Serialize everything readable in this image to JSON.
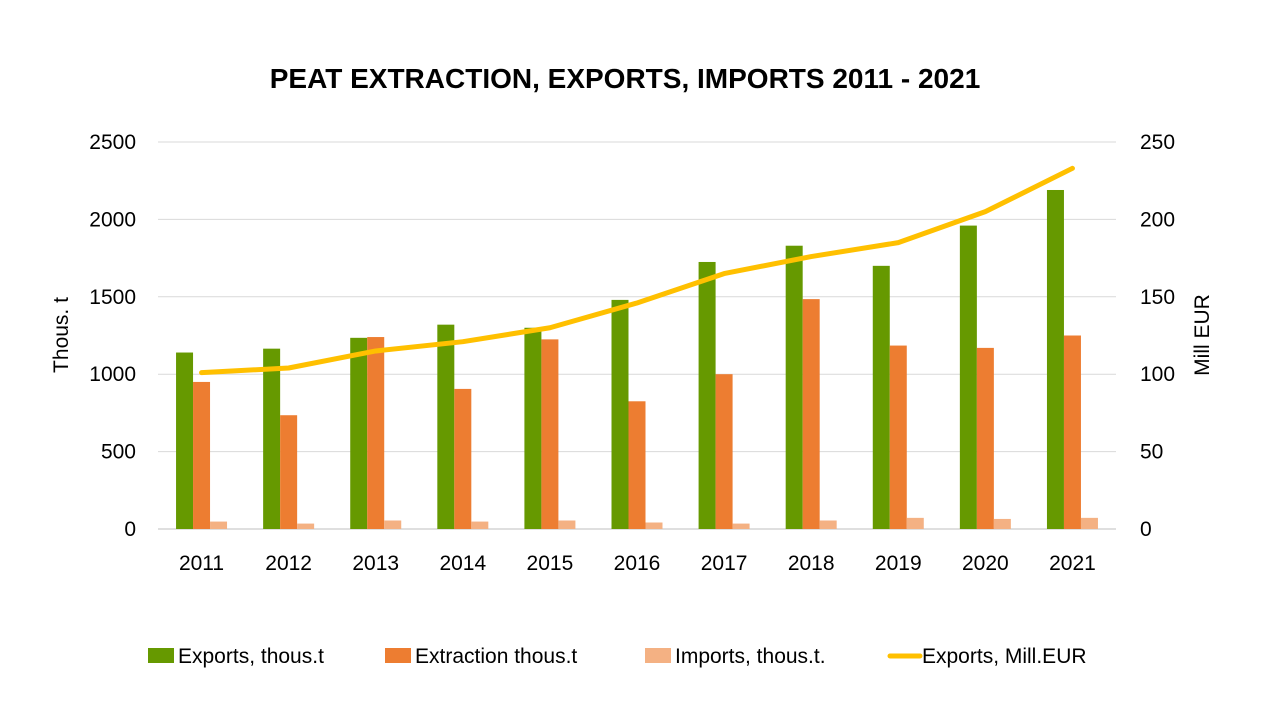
{
  "chart_data": {
    "type": "bar",
    "title": "PEAT EXTRACTION, EXPORTS, IMPORTS 2011 - 2021",
    "categories": [
      "2011",
      "2012",
      "2013",
      "2014",
      "2015",
      "2016",
      "2017",
      "2018",
      "2019",
      "2020",
      "2021"
    ],
    "y_left": {
      "label": "Thous. t",
      "range": [
        0,
        2500
      ],
      "ticks": [
        "0",
        "500",
        "1000",
        "1500",
        "2000",
        "2500"
      ]
    },
    "y_right": {
      "label": "Mill EUR",
      "range": [
        0,
        250
      ],
      "ticks": [
        "0",
        "50",
        "100",
        "150",
        "200",
        "250"
      ]
    },
    "grid": true,
    "legend_position": "bottom",
    "series": [
      {
        "name": "Exports, thous.t",
        "type": "bar",
        "axis": "left",
        "color": "#669900",
        "values": [
          1140,
          1165,
          1235,
          1320,
          1300,
          1480,
          1725,
          1830,
          1700,
          1960,
          2190
        ]
      },
      {
        "name": "Extraction thous.t",
        "type": "bar",
        "axis": "left",
        "color": "#ED7D31",
        "values": [
          950,
          735,
          1240,
          905,
          1225,
          825,
          1000,
          1485,
          1185,
          1170,
          1250
        ]
      },
      {
        "name": "Imports, thous.t.",
        "type": "bar",
        "axis": "left",
        "color": "#F4B183",
        "values": [
          48,
          35,
          55,
          48,
          55,
          42,
          35,
          55,
          72,
          65,
          72
        ]
      },
      {
        "name": "Exports, Mill.EUR",
        "type": "line",
        "axis": "right",
        "color": "#FFC000",
        "values": [
          101,
          104,
          115,
          121,
          130,
          146,
          165,
          176,
          185,
          205,
          233
        ]
      }
    ]
  }
}
